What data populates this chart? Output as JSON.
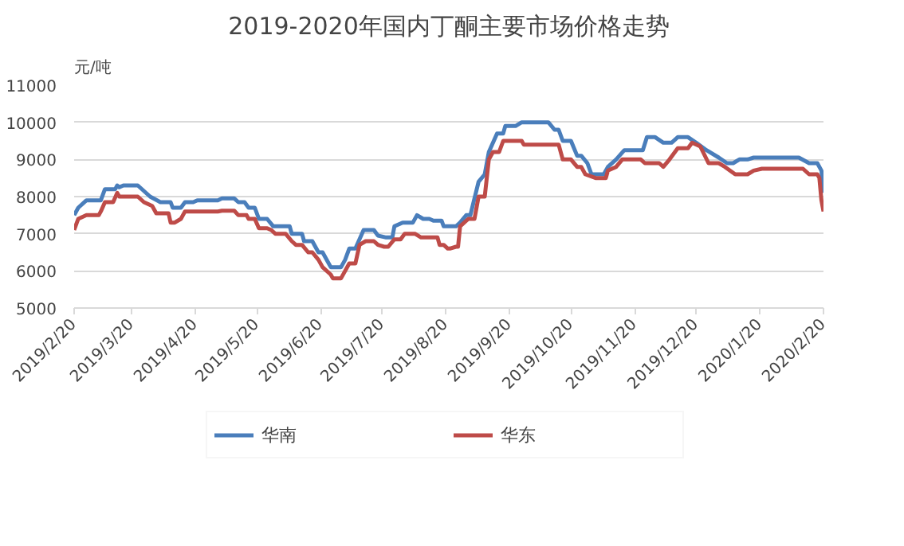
{
  "chart_data": {
    "type": "line",
    "title": "2019-2020年国内丁酮主要市场价格走势",
    "ylabel": "元/吨",
    "xlim": [
      "2019-02-20",
      "2020-02-20"
    ],
    "xticks": [
      {
        "value": "2019-02-20",
        "label": "2019/2/20"
      },
      {
        "value": "2019-03-20",
        "label": "2019/3/20"
      },
      {
        "value": "2019-04-20",
        "label": "2019/4/20"
      },
      {
        "value": "2019-05-20",
        "label": "2019/5/20"
      },
      {
        "value": "2019-06-20",
        "label": "2019/6/20"
      },
      {
        "value": "2019-07-20",
        "label": "2019/7/20"
      },
      {
        "value": "2019-08-20",
        "label": "2019/8/20"
      },
      {
        "value": "2019-09-20",
        "label": "2019/9/20"
      },
      {
        "value": "2019-10-20",
        "label": "2019/10/20"
      },
      {
        "value": "2019-11-20",
        "label": "2019/11/20"
      },
      {
        "value": "2019-12-20",
        "label": "2019/12/20"
      },
      {
        "value": "2020-01-20",
        "label": "2020/1/20"
      },
      {
        "value": "2020-02-20",
        "label": "2020/2/20"
      }
    ],
    "ylim": [
      5000,
      11000
    ],
    "yticks": [
      5000,
      6000,
      7000,
      8000,
      9000,
      10000,
      11000
    ],
    "grid": "y",
    "legend": "bottom",
    "marker": "none",
    "line_style": "solid",
    "series": [
      {
        "name": "华南",
        "color": "#4a7ebb",
        "x": [
          "2019-02-20",
          "2019-02-22",
          "2019-02-26",
          "2019-03-05",
          "2019-03-07",
          "2019-03-12",
          "2019-03-13",
          "2019-03-14",
          "2019-03-16",
          "2019-03-23",
          "2019-03-29",
          "2019-04-03",
          "2019-04-08",
          "2019-04-09",
          "2019-04-13",
          "2019-04-15",
          "2019-04-19",
          "2019-04-21",
          "2019-05-01",
          "2019-05-03",
          "2019-05-09",
          "2019-05-11",
          "2019-05-14",
          "2019-05-16",
          "2019-05-19",
          "2019-05-21",
          "2019-05-25",
          "2019-05-28",
          "2019-06-05",
          "2019-06-06",
          "2019-06-11",
          "2019-06-12",
          "2019-06-16",
          "2019-06-19",
          "2019-06-21",
          "2019-06-25",
          "2019-06-30",
          "2019-07-02",
          "2019-07-04",
          "2019-07-07",
          "2019-07-11",
          "2019-07-16",
          "2019-07-18",
          "2019-07-22",
          "2019-07-25",
          "2019-07-26",
          "2019-07-30",
          "2019-08-04",
          "2019-08-06",
          "2019-08-09",
          "2019-08-12",
          "2019-08-14",
          "2019-08-18",
          "2019-08-19",
          "2019-08-25",
          "2019-08-27",
          "2019-08-30",
          "2019-09-01",
          "2019-09-05",
          "2019-09-08",
          "2019-09-10",
          "2019-09-14",
          "2019-09-17",
          "2019-09-18",
          "2019-09-23",
          "2019-09-26",
          "2019-10-09",
          "2019-10-12",
          "2019-10-14",
          "2019-10-16",
          "2019-10-20",
          "2019-10-23",
          "2019-10-25",
          "2019-10-28",
          "2019-10-30",
          "2019-11-05",
          "2019-11-07",
          "2019-11-11",
          "2019-11-15",
          "2019-11-24",
          "2019-11-26",
          "2019-11-30",
          "2019-12-04",
          "2019-12-08",
          "2019-12-11",
          "2019-12-16",
          "2019-12-20",
          "2019-12-25",
          "2019-12-31",
          "2020-01-04",
          "2020-01-07",
          "2020-01-10",
          "2020-01-14",
          "2020-01-17",
          "2020-02-08",
          "2020-02-13",
          "2020-02-17",
          "2020-02-19",
          "2020-02-20"
        ],
        "values": [
          7500,
          7700,
          7900,
          7900,
          8200,
          8200,
          8300,
          8250,
          8300,
          8300,
          8000,
          7850,
          7850,
          7700,
          7700,
          7850,
          7850,
          7900,
          7900,
          7950,
          7950,
          7850,
          7850,
          7700,
          7700,
          7400,
          7400,
          7200,
          7200,
          7000,
          7000,
          6800,
          6800,
          6500,
          6500,
          6100,
          6100,
          6300,
          6600,
          6600,
          7100,
          7100,
          6950,
          6900,
          6900,
          7200,
          7300,
          7300,
          7500,
          7400,
          7400,
          7350,
          7350,
          7200,
          7200,
          7300,
          7500,
          7500,
          8400,
          8600,
          9200,
          9700,
          9700,
          9900,
          9900,
          10000,
          10000,
          9800,
          9800,
          9500,
          9500,
          9100,
          9100,
          8900,
          8600,
          8600,
          8800,
          9000,
          9250,
          9250,
          9600,
          9600,
          9450,
          9450,
          9600,
          9600,
          9450,
          9250,
          9050,
          8900,
          8900,
          9000,
          9000,
          9050,
          9050,
          8900,
          8900,
          8700,
          8100
        ]
      },
      {
        "name": "华东",
        "color": "#be4b48",
        "x": [
          "2019-02-20",
          "2019-02-22",
          "2019-02-26",
          "2019-03-04",
          "2019-03-05",
          "2019-03-07",
          "2019-03-11",
          "2019-03-13",
          "2019-03-14",
          "2019-03-23",
          "2019-03-26",
          "2019-03-30",
          "2019-04-01",
          "2019-04-07",
          "2019-04-08",
          "2019-04-10",
          "2019-04-13",
          "2019-04-15",
          "2019-05-01",
          "2019-05-03",
          "2019-05-09",
          "2019-05-11",
          "2019-05-15",
          "2019-05-16",
          "2019-05-19",
          "2019-05-21",
          "2019-05-25",
          "2019-05-27",
          "2019-05-29",
          "2019-06-03",
          "2019-06-06",
          "2019-06-08",
          "2019-06-11",
          "2019-06-14",
          "2019-06-16",
          "2019-06-19",
          "2019-06-21",
          "2019-06-25",
          "2019-06-26",
          "2019-06-30",
          "2019-07-02",
          "2019-07-04",
          "2019-07-07",
          "2019-07-09",
          "2019-07-12",
          "2019-07-16",
          "2019-07-18",
          "2019-07-21",
          "2019-07-23",
          "2019-07-26",
          "2019-07-29",
          "2019-07-31",
          "2019-08-05",
          "2019-08-08",
          "2019-08-16",
          "2019-08-17",
          "2019-08-19",
          "2019-08-21",
          "2019-08-22",
          "2019-08-25",
          "2019-08-26",
          "2019-08-27",
          "2019-08-31",
          "2019-09-03",
          "2019-09-05",
          "2019-09-08",
          "2019-09-10",
          "2019-09-12",
          "2019-09-15",
          "2019-09-17",
          "2019-09-26",
          "2019-09-27",
          "2019-10-14",
          "2019-10-16",
          "2019-10-20",
          "2019-10-23",
          "2019-10-25",
          "2019-10-27",
          "2019-11-01",
          "2019-11-06",
          "2019-11-07",
          "2019-11-11",
          "2019-11-14",
          "2019-11-23",
          "2019-11-25",
          "2019-12-02",
          "2019-12-04",
          "2019-12-07",
          "2019-12-11",
          "2019-12-16",
          "2019-12-18",
          "2019-12-22",
          "2019-12-26",
          "2019-12-31",
          "2020-01-03",
          "2020-01-08",
          "2020-01-14",
          "2020-01-17",
          "2020-01-21",
          "2020-02-10",
          "2020-02-13",
          "2020-02-17",
          "2020-02-18",
          "2020-02-19",
          "2020-02-20"
        ],
        "values": [
          7100,
          7400,
          7500,
          7500,
          7600,
          7850,
          7850,
          8100,
          8000,
          8000,
          7850,
          7750,
          7550,
          7550,
          7300,
          7300,
          7400,
          7600,
          7600,
          7620,
          7620,
          7500,
          7500,
          7400,
          7400,
          7150,
          7150,
          7100,
          7000,
          7000,
          6800,
          6700,
          6700,
          6500,
          6500,
          6300,
          6100,
          5900,
          5800,
          5800,
          6000,
          6200,
          6200,
          6700,
          6800,
          6800,
          6700,
          6650,
          6650,
          6850,
          6850,
          7000,
          7000,
          6900,
          6900,
          6700,
          6700,
          6600,
          6600,
          6650,
          6650,
          7200,
          7400,
          7400,
          8000,
          8000,
          9000,
          9200,
          9200,
          9500,
          9500,
          9400,
          9400,
          9000,
          9000,
          8800,
          8800,
          8600,
          8500,
          8500,
          8700,
          8800,
          9000,
          9000,
          8900,
          8900,
          8800,
          9000,
          9300,
          9300,
          9450,
          9350,
          8900,
          8900,
          8800,
          8600,
          8600,
          8700,
          8750,
          8750,
          8600,
          8600,
          8500,
          7900,
          7600
        ]
      }
    ]
  }
}
